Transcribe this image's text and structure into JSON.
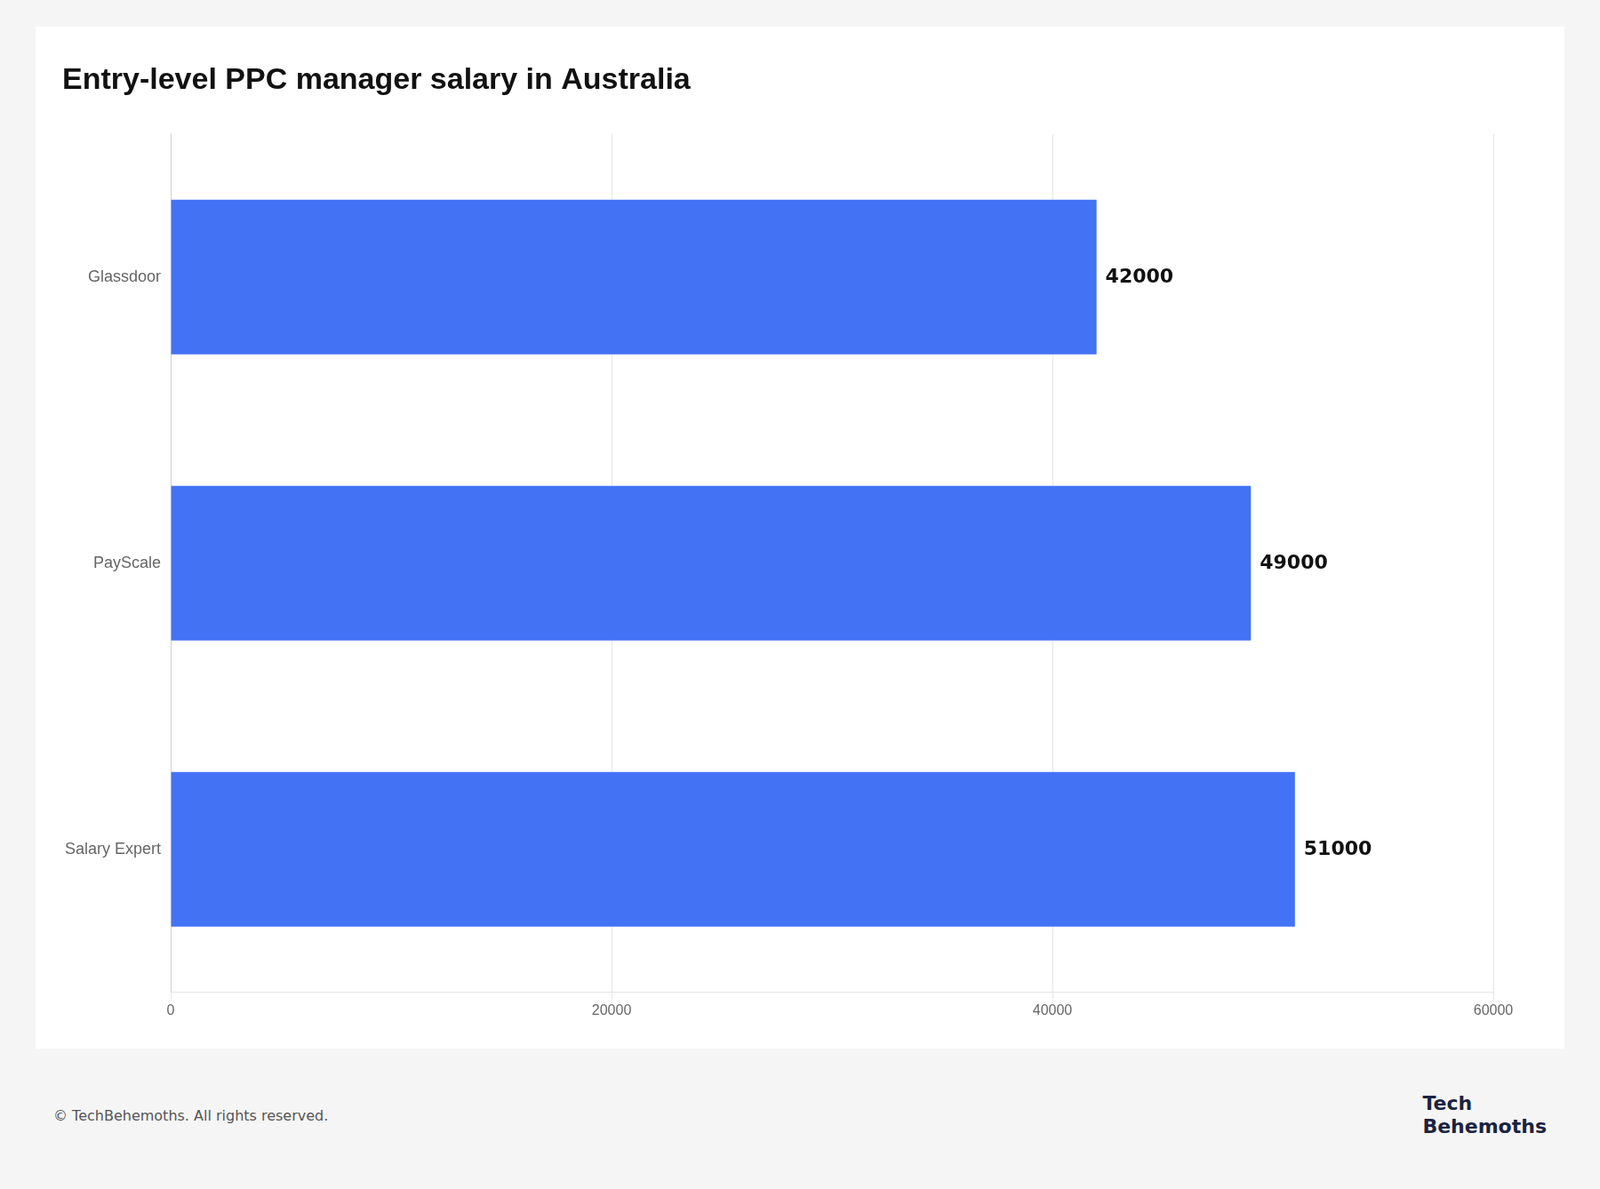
{
  "chart_data": {
    "type": "bar",
    "orientation": "horizontal",
    "title": "Entry-level PPC manager salary in Australia",
    "categories": [
      "Glassdoor",
      "PayScale",
      "Salary Expert"
    ],
    "values": [
      42000,
      49000,
      51000
    ],
    "color": "#4472f5",
    "xlim": [
      0,
      60000
    ],
    "xticks": [
      0,
      20000,
      40000,
      60000
    ],
    "grid": true,
    "data_labels": true,
    "annotations": [
      "© TechBehemoths. All rights reserved.",
      "Tech",
      "Behemoths"
    ]
  }
}
